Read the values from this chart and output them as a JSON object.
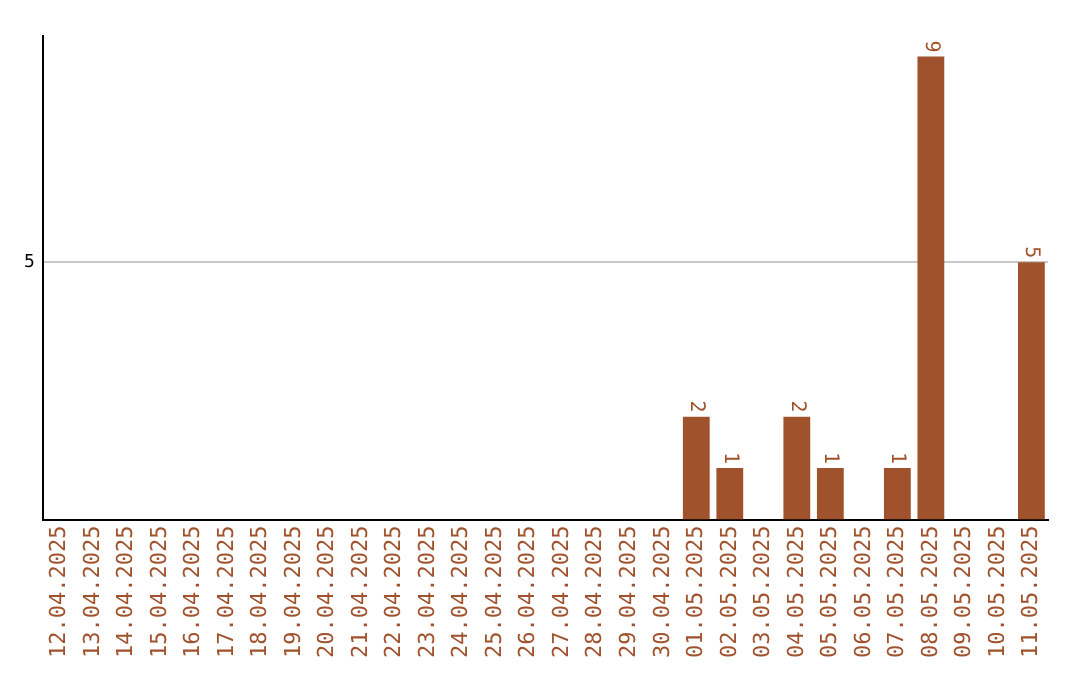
{
  "chart_data": {
    "type": "bar",
    "ylim": [
      0,
      9.4
    ],
    "categories": [
      "12.04.2025",
      "13.04.2025",
      "14.04.2025",
      "15.04.2025",
      "16.04.2025",
      "17.04.2025",
      "18.04.2025",
      "19.04.2025",
      "20.04.2025",
      "21.04.2025",
      "22.04.2025",
      "23.04.2025",
      "24.04.2025",
      "25.04.2025",
      "26.04.2025",
      "27.04.2025",
      "28.04.2025",
      "29.04.2025",
      "30.04.2025",
      "01.05.2025",
      "02.05.2025",
      "03.05.2025",
      "04.05.2025",
      "05.05.2025",
      "06.05.2025",
      "07.05.2025",
      "08.05.2025",
      "09.05.2025",
      "10.05.2025",
      "11.05.2025"
    ],
    "values": [
      null,
      null,
      null,
      null,
      null,
      null,
      null,
      null,
      null,
      null,
      null,
      null,
      null,
      null,
      null,
      null,
      null,
      null,
      null,
      2,
      1,
      null,
      2,
      1,
      null,
      1,
      9,
      null,
      null,
      5
    ],
    "value_labels": [
      null,
      null,
      null,
      null,
      null,
      null,
      null,
      null,
      null,
      null,
      null,
      null,
      null,
      null,
      null,
      null,
      null,
      null,
      null,
      "2",
      "1",
      null,
      "2",
      "1",
      null,
      "1",
      "9",
      null,
      null,
      "5"
    ],
    "yticks": [
      5
    ],
    "grid": "y",
    "color": "#a0522d",
    "legend": false
  }
}
